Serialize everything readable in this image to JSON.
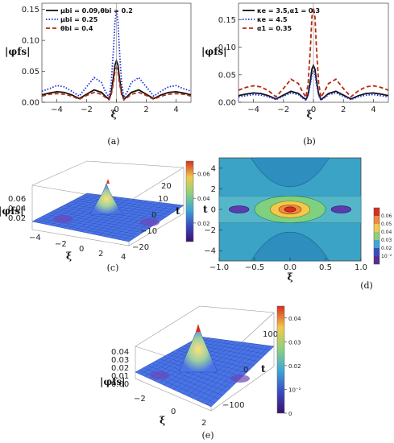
{
  "colors": {
    "black": "#111111",
    "blue": "#1a2fd6",
    "red": "#b52a10",
    "surface": "#4a74e6",
    "contour_outer": "#3aa3c6",
    "contour_mid": "#7fd07f",
    "contour_inner": "#f2c94c",
    "contour_peak": "#d62f1f",
    "contour_dip": "#5a3cb0"
  },
  "chart_data": [
    {
      "id": "a",
      "type": "line",
      "caption": "(a)",
      "xlabel": "ξ",
      "ylabel": "|φfs|",
      "xlim": [
        -5,
        5
      ],
      "ylim": [
        0,
        0.16
      ],
      "xticks": [
        "−4",
        "−2",
        "0",
        "2",
        "4"
      ],
      "xtick_values": [
        -4,
        -2,
        0,
        2,
        4
      ],
      "yticks": [
        "0.00",
        "0.05",
        "0.10",
        "0.15"
      ],
      "ytick_values": [
        0,
        0.05,
        0.1,
        0.15
      ],
      "legend_position": "top-left",
      "series": [
        {
          "name": "μbi = 0.09,θbi = 0.2",
          "style": "solid",
          "color": "#111111",
          "x": [
            -5,
            -4.5,
            -4,
            -3.5,
            -3,
            -2.5,
            -2,
            -1.5,
            -1,
            -0.75,
            -0.5,
            -0.35,
            -0.2,
            -0.1,
            0,
            0.1,
            0.2,
            0.35,
            0.5,
            0.75,
            1,
            1.5,
            2,
            2.5,
            3,
            3.5,
            4,
            4.5,
            5
          ],
          "y": [
            0.012,
            0.015,
            0.017,
            0.016,
            0.012,
            0.006,
            0.013,
            0.02,
            0.016,
            0.01,
            0.005,
            0.015,
            0.04,
            0.06,
            0.067,
            0.06,
            0.04,
            0.015,
            0.005,
            0.01,
            0.016,
            0.02,
            0.013,
            0.006,
            0.012,
            0.016,
            0.017,
            0.015,
            0.012
          ]
        },
        {
          "name": "μbi = 0.25",
          "style": "dotted",
          "color": "#1a2fd6",
          "x": [
            -5,
            -4.5,
            -4,
            -3.5,
            -3,
            -2.5,
            -2,
            -1.5,
            -1,
            -0.75,
            -0.5,
            -0.35,
            -0.2,
            -0.1,
            0,
            0.1,
            0.2,
            0.35,
            0.5,
            0.75,
            1,
            1.5,
            2,
            2.5,
            3,
            3.5,
            4,
            4.5,
            5
          ],
          "y": [
            0.018,
            0.022,
            0.027,
            0.025,
            0.018,
            0.01,
            0.025,
            0.04,
            0.032,
            0.018,
            0.008,
            0.03,
            0.085,
            0.13,
            0.148,
            0.13,
            0.085,
            0.03,
            0.008,
            0.018,
            0.032,
            0.04,
            0.025,
            0.01,
            0.018,
            0.025,
            0.027,
            0.022,
            0.018
          ]
        },
        {
          "name": "θbi = 0.4",
          "style": "dashed",
          "color": "#b52a10",
          "x": [
            -5,
            -4.5,
            -4,
            -3.5,
            -3,
            -2.5,
            -2,
            -1.5,
            -1,
            -0.75,
            -0.5,
            -0.35,
            -0.2,
            -0.1,
            0,
            0.1,
            0.2,
            0.35,
            0.5,
            0.75,
            1,
            1.5,
            2,
            2.5,
            3,
            3.5,
            4,
            4.5,
            5
          ],
          "y": [
            0.01,
            0.013,
            0.014,
            0.013,
            0.01,
            0.005,
            0.011,
            0.016,
            0.013,
            0.008,
            0.004,
            0.012,
            0.032,
            0.05,
            0.056,
            0.05,
            0.032,
            0.012,
            0.004,
            0.008,
            0.013,
            0.016,
            0.011,
            0.005,
            0.01,
            0.013,
            0.014,
            0.013,
            0.01
          ]
        }
      ]
    },
    {
      "id": "b",
      "type": "line",
      "caption": "(b)",
      "xlabel": "ξ",
      "ylabel": "|φfs|",
      "xlim": [
        -5,
        5
      ],
      "ylim": [
        0,
        0.18
      ],
      "xticks": [
        "−4",
        "−2",
        "0",
        "2",
        "4"
      ],
      "xtick_values": [
        -4,
        -2,
        0,
        2,
        4
      ],
      "yticks": [
        "0.00",
        "0.05",
        "0.10",
        "0.15"
      ],
      "ytick_values": [
        0,
        0.05,
        0.1,
        0.15
      ],
      "legend_position": "top-left",
      "series": [
        {
          "name": "κe = 3.5,α1 = 0.3",
          "style": "solid",
          "color": "#111111",
          "x": [
            -5,
            -4.5,
            -4,
            -3.5,
            -3,
            -2.5,
            -2,
            -1.5,
            -1,
            -0.75,
            -0.5,
            -0.35,
            -0.2,
            -0.1,
            0,
            0.1,
            0.2,
            0.35,
            0.5,
            0.75,
            1,
            1.5,
            2,
            2.5,
            3,
            3.5,
            4,
            4.5,
            5
          ],
          "y": [
            0.012,
            0.015,
            0.017,
            0.016,
            0.012,
            0.006,
            0.013,
            0.02,
            0.016,
            0.01,
            0.005,
            0.015,
            0.04,
            0.06,
            0.067,
            0.06,
            0.04,
            0.015,
            0.005,
            0.01,
            0.016,
            0.02,
            0.013,
            0.006,
            0.012,
            0.016,
            0.017,
            0.015,
            0.012
          ]
        },
        {
          "name": "κe = 4.5",
          "style": "dotted",
          "color": "#1a2fd6",
          "x": [
            -5,
            -4.5,
            -4,
            -3.5,
            -3,
            -2.5,
            -2,
            -1.5,
            -1,
            -0.75,
            -0.5,
            -0.35,
            -0.2,
            -0.1,
            0,
            0.1,
            0.2,
            0.35,
            0.5,
            0.75,
            1,
            1.5,
            2,
            2.5,
            3,
            3.5,
            4,
            4.5,
            5
          ],
          "y": [
            0.01,
            0.012,
            0.014,
            0.013,
            0.01,
            0.005,
            0.011,
            0.017,
            0.014,
            0.008,
            0.004,
            0.013,
            0.034,
            0.051,
            0.056,
            0.051,
            0.034,
            0.013,
            0.004,
            0.008,
            0.014,
            0.017,
            0.011,
            0.005,
            0.01,
            0.013,
            0.014,
            0.012,
            0.01
          ]
        },
        {
          "name": "α1 = 0.35",
          "style": "dashed",
          "color": "#b52a10",
          "x": [
            -5,
            -4.5,
            -4,
            -3.5,
            -3,
            -2.5,
            -2,
            -1.5,
            -1,
            -0.75,
            -0.5,
            -0.35,
            -0.2,
            -0.1,
            0,
            0.1,
            0.2,
            0.35,
            0.5,
            0.75,
            1,
            1.5,
            2,
            2.5,
            3,
            3.5,
            4,
            4.5,
            5
          ],
          "y": [
            0.022,
            0.027,
            0.03,
            0.028,
            0.021,
            0.01,
            0.025,
            0.042,
            0.034,
            0.02,
            0.009,
            0.035,
            0.1,
            0.155,
            0.172,
            0.155,
            0.1,
            0.035,
            0.009,
            0.02,
            0.034,
            0.042,
            0.025,
            0.01,
            0.021,
            0.028,
            0.03,
            0.027,
            0.022
          ]
        }
      ]
    },
    {
      "id": "c",
      "type": "surface3d",
      "caption": "(c)",
      "xlabel": "ξ",
      "ylabel": "t",
      "zlabel": "|φfs|",
      "xlim": [
        -4,
        4
      ],
      "ylim": [
        -20,
        20
      ],
      "xticks": [
        "−4",
        "−2",
        "0",
        "2",
        "4"
      ],
      "yticks": [
        "20",
        "10",
        "0",
        "−10",
        "−20"
      ],
      "zticks": [
        "0.06",
        "0.04",
        "0.02"
      ],
      "colorbar": {
        "ticks": [
          "0.06",
          "0.04",
          "0.02"
        ],
        "tick_values": [
          0.06,
          0.04,
          0.02
        ],
        "range": [
          0.005,
          0.07
        ]
      }
    },
    {
      "id": "d",
      "type": "contour",
      "caption": "(d)",
      "xlabel": "ξ",
      "ylabel": "t",
      "xlim": [
        -1,
        1
      ],
      "ylim": [
        -5,
        5
      ],
      "xticks": [
        "−1.0",
        "−0.5",
        "0.0",
        "0.5",
        "1.0"
      ],
      "xtick_values": [
        -1,
        -0.5,
        0,
        0.5,
        1
      ],
      "yticks": [
        "4",
        "2",
        "0",
        "−2",
        "−4"
      ],
      "ytick_values": [
        4,
        2,
        0,
        -2,
        -4
      ],
      "colorbar": {
        "ticks": [
          "0.06",
          "0.05",
          "0.04",
          "0.03",
          "0.02",
          "10⁻²"
        ]
      }
    },
    {
      "id": "e",
      "type": "surface3d",
      "caption": "(e)",
      "xlabel": "ξ",
      "ylabel": "t",
      "zlabel": "|φfs|",
      "xlim": [
        -2,
        2
      ],
      "ylim": [
        -100,
        100
      ],
      "xticks": [
        "−2",
        "0",
        "2"
      ],
      "yticks": [
        "100",
        "0",
        "−100"
      ],
      "zticks": [
        "0.04",
        "0.03",
        "0.02",
        "0.01",
        "0.00"
      ],
      "colorbar": {
        "ticks": [
          "0.04",
          "0.03",
          "0.02",
          "10⁻²",
          "0"
        ],
        "tick_values": [
          0.04,
          0.03,
          0.02,
          0.01,
          0
        ],
        "range": [
          0,
          0.045
        ]
      }
    }
  ]
}
